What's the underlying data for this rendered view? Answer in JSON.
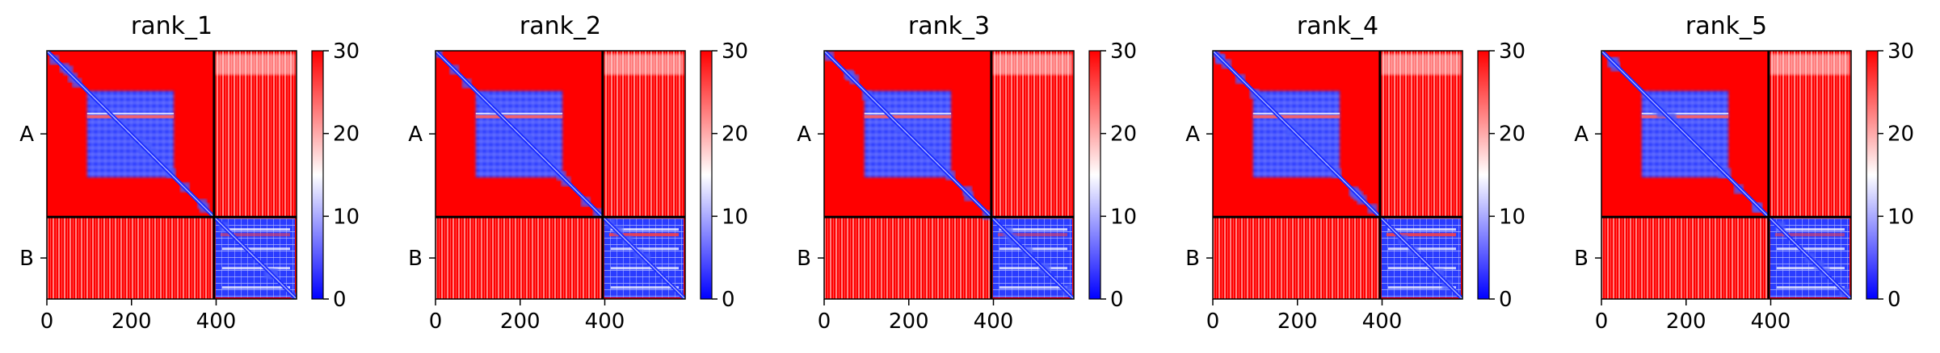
{
  "chart_data": {
    "type": "heatmap",
    "panels": [
      {
        "title": "rank_1"
      },
      {
        "title": "rank_2"
      },
      {
        "title": "rank_3"
      },
      {
        "title": "rank_4"
      },
      {
        "title": "rank_5"
      }
    ],
    "x_ticks": [
      0,
      200,
      400
    ],
    "xlim": [
      0,
      590
    ],
    "chain_labels": [
      "A",
      "B"
    ],
    "chain_boundary": 395,
    "colorbar": {
      "ticks": [
        0,
        10,
        20,
        30
      ],
      "range": [
        0,
        30
      ],
      "colormap": "bwr",
      "colors": {
        "low": "#0000ff",
        "mid": "#ffffff",
        "high": "#ff0000"
      }
    }
  }
}
